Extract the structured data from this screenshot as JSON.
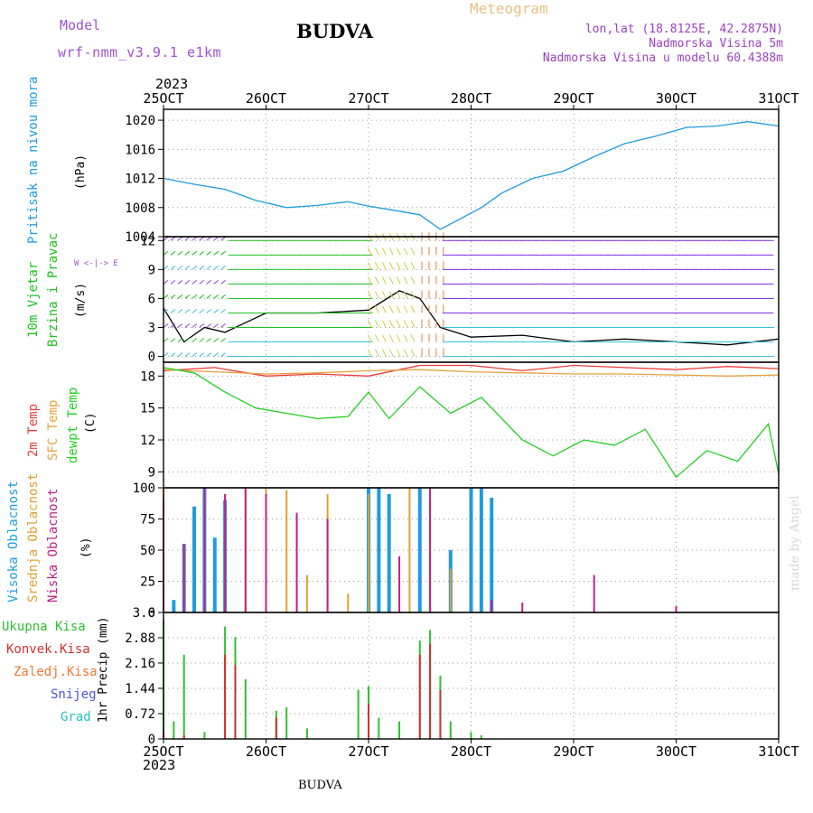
{
  "header": {
    "model_label": "Model",
    "model_value": "wrf-nmm_v3.9.1 e1km",
    "location": "BUDVA",
    "meteogram_label": "Meteogram",
    "coords": "lon,lat (18.8125E, 42.2875N)",
    "elevation": "Nadmorska Visina 5m",
    "model_elevation": "Nadmorska Visina u modelu 60.4388m",
    "bottom_location": "BUDVA",
    "credit": "made by Angel",
    "year": "2023"
  },
  "colors": {
    "pressure": "#1e9be0",
    "wind_speed": "#19c10a",
    "temp2m": "#ee3b3b",
    "sfc_temp": "#e6a23c",
    "dewpt": "#20d020",
    "high_cloud": "#1e9be0",
    "mid_cloud": "#e0a030",
    "low_cloud": "#c0208a",
    "precip_total": "#30c030",
    "precip_conv": "#d03030",
    "freezing": "#f07830",
    "snow": "#5050e0",
    "graupel": "#20c0c0",
    "model_purple": "#a050d0",
    "coords_purple": "#a040c0"
  },
  "x_axis": {
    "ticks": [
      "25OCT",
      "26OCT",
      "27OCT",
      "28OCT",
      "29OCT",
      "30OCT",
      "31OCT"
    ],
    "range_days": [
      25,
      31
    ]
  },
  "panel_labels": {
    "pressure": [
      "Pritisak na nivou mora"
    ],
    "pressure_unit": "(hPa)",
    "wind": [
      "10m Vjetar",
      "Brzina i Pravac"
    ],
    "wind_unit": "(m/s)",
    "compass": "W <-|-> E",
    "temp": [
      "2m Temp",
      "SFC Temp",
      "dewpt Temp"
    ],
    "temp_unit": "(C)",
    "cloud": [
      "Visoka Oblacnost",
      "Srednja Oblacnost",
      "Niska Oblacnost"
    ],
    "cloud_unit": "(%)",
    "precip_unit": "1hr Precip (mm)",
    "precip_legend": [
      "Ukupna Kisa",
      "Konvek.Kisa",
      "Zaledj.Kisa",
      "Snijeg",
      "Grad"
    ]
  },
  "chart_data": [
    {
      "type": "line",
      "panel": "pressure",
      "ylabel": "(hPa)",
      "yticks": [
        "1004",
        "1008",
        "1012",
        "1016",
        "1020"
      ],
      "ylim": [
        1004,
        1021.5
      ],
      "grid": true,
      "series": [
        {
          "name": "Pritisak na nivou mora",
          "x": [
            25.0,
            25.3,
            25.6,
            25.9,
            26.2,
            26.5,
            26.8,
            27.0,
            27.3,
            27.5,
            27.7,
            27.9,
            28.1,
            28.3,
            28.6,
            28.9,
            29.2,
            29.5,
            29.8,
            30.1,
            30.4,
            30.7,
            31.0
          ],
          "values": [
            1012.0,
            1011.2,
            1010.5,
            1009.0,
            1008.0,
            1008.3,
            1008.8,
            1008.2,
            1007.5,
            1007.0,
            1005.0,
            1006.5,
            1008.0,
            1010.0,
            1012.0,
            1013.0,
            1015.0,
            1016.8,
            1017.8,
            1019.0,
            1019.2,
            1019.8,
            1019.2
          ]
        }
      ]
    },
    {
      "type": "line",
      "panel": "wind",
      "ylabel": "(m/s)",
      "yticks": [
        "0",
        "3",
        "6",
        "9",
        "12"
      ],
      "ylim": [
        -0.6,
        12.4
      ],
      "grid": true,
      "series": [
        {
          "name": "wind speed",
          "x": [
            25.0,
            25.2,
            25.4,
            25.6,
            26.0,
            26.5,
            27.0,
            27.3,
            27.5,
            27.7,
            28.0,
            28.5,
            29.0,
            29.5,
            30.0,
            30.5,
            31.0
          ],
          "values": [
            5.0,
            1.5,
            3.0,
            2.5,
            4.5,
            4.5,
            4.8,
            6.8,
            6.0,
            3.0,
            2.0,
            2.2,
            1.5,
            1.8,
            1.5,
            1.2,
            1.8
          ]
        }
      ]
    },
    {
      "type": "line",
      "panel": "temperature",
      "ylabel": "(C)",
      "yticks": [
        "9",
        "12",
        "15",
        "18"
      ],
      "ylim": [
        7.5,
        19.3
      ],
      "grid": true,
      "series": [
        {
          "name": "2m Temp",
          "x": [
            25.0,
            25.5,
            26.0,
            26.5,
            27.0,
            27.5,
            28.0,
            28.5,
            29.0,
            29.5,
            30.0,
            30.5,
            31.0
          ],
          "values": [
            18.5,
            18.8,
            18.0,
            18.2,
            18.0,
            19.0,
            19.0,
            18.5,
            19.0,
            18.8,
            18.6,
            18.9,
            18.7
          ]
        },
        {
          "name": "SFC Temp",
          "x": [
            25.0,
            25.5,
            26.0,
            26.5,
            27.0,
            27.5,
            28.0,
            28.5,
            29.0,
            29.5,
            30.0,
            30.5,
            31.0
          ],
          "values": [
            18.6,
            18.4,
            18.2,
            18.3,
            18.5,
            18.6,
            18.4,
            18.3,
            18.2,
            18.2,
            18.1,
            18.0,
            18.1
          ]
        },
        {
          "name": "dewpt Temp",
          "x": [
            25.0,
            25.3,
            25.6,
            25.9,
            26.2,
            26.5,
            26.8,
            27.0,
            27.2,
            27.5,
            27.8,
            28.1,
            28.5,
            28.8,
            29.1,
            29.4,
            29.7,
            30.0,
            30.3,
            30.6,
            30.9,
            31.0
          ],
          "values": [
            18.8,
            18.3,
            16.5,
            15.0,
            14.5,
            14.0,
            14.2,
            16.5,
            14.0,
            17.0,
            14.5,
            16.0,
            12.0,
            10.5,
            12.0,
            11.5,
            13.0,
            8.5,
            11.0,
            10.0,
            13.5,
            8.8
          ]
        }
      ]
    },
    {
      "type": "bar",
      "panel": "cloud",
      "ylabel": "(%)",
      "yticks": [
        "0",
        "25",
        "50",
        "75",
        "100"
      ],
      "ylim": [
        0,
        100
      ],
      "grid": true,
      "series": [
        {
          "name": "Visoka Oblacnost",
          "x": [
            25.1,
            25.2,
            25.3,
            25.4,
            25.5,
            25.6,
            27.0,
            27.0,
            27.1,
            27.2,
            27.5,
            27.8,
            28.0,
            28.1,
            28.2
          ],
          "values": [
            10,
            55,
            85,
            100,
            60,
            90,
            100,
            100,
            100,
            95,
            100,
            50,
            100,
            100,
            92
          ]
        },
        {
          "name": "Srednja Oblacnost",
          "x": [
            25.0,
            25.2,
            25.4,
            25.6,
            25.8,
            26.0,
            26.2,
            26.4,
            26.6,
            26.8,
            27.0,
            27.4,
            27.6,
            27.8
          ],
          "values": [
            100,
            55,
            100,
            95,
            100,
            100,
            98,
            30,
            95,
            15,
            95,
            100,
            90,
            35
          ]
        },
        {
          "name": "Niska Oblacnost",
          "x": [
            25.0,
            25.2,
            25.4,
            25.6,
            25.8,
            26.0,
            26.3,
            26.6,
            27.3,
            27.6,
            28.2,
            28.5,
            29.2,
            30.0,
            31.0
          ],
          "values": [
            90,
            55,
            100,
            95,
            100,
            95,
            80,
            75,
            45,
            100,
            10,
            8,
            30,
            5,
            1
          ]
        }
      ]
    },
    {
      "type": "bar",
      "panel": "precipitation",
      "ylabel": "1hr Precip (mm)",
      "yticks": [
        "0",
        "0.72",
        "1.44",
        "2.16",
        "2.88",
        "3.6"
      ],
      "ylim": [
        0,
        3.6
      ],
      "grid": true,
      "series": [
        {
          "name": "Ukupna Kisa",
          "x": [
            25.0,
            25.1,
            25.2,
            25.4,
            25.6,
            25.7,
            25.8,
            26.1,
            26.2,
            26.4,
            26.9,
            27.0,
            27.1,
            27.3,
            27.5,
            27.6,
            27.7,
            27.8,
            28.0,
            28.1
          ],
          "values": [
            3.4,
            0.5,
            2.4,
            0.2,
            3.2,
            2.9,
            1.7,
            0.8,
            0.9,
            0.3,
            1.4,
            1.5,
            0.6,
            0.5,
            2.8,
            3.1,
            1.8,
            0.5,
            0.2,
            0.1
          ]
        },
        {
          "name": "Konvek.Kisa",
          "x": [
            25.0,
            25.2,
            25.6,
            25.7,
            26.1,
            27.0,
            27.5,
            27.6,
            27.7
          ],
          "values": [
            0.2,
            0.1,
            2.4,
            2.1,
            0.6,
            1.0,
            2.4,
            2.7,
            1.4
          ]
        }
      ]
    }
  ]
}
